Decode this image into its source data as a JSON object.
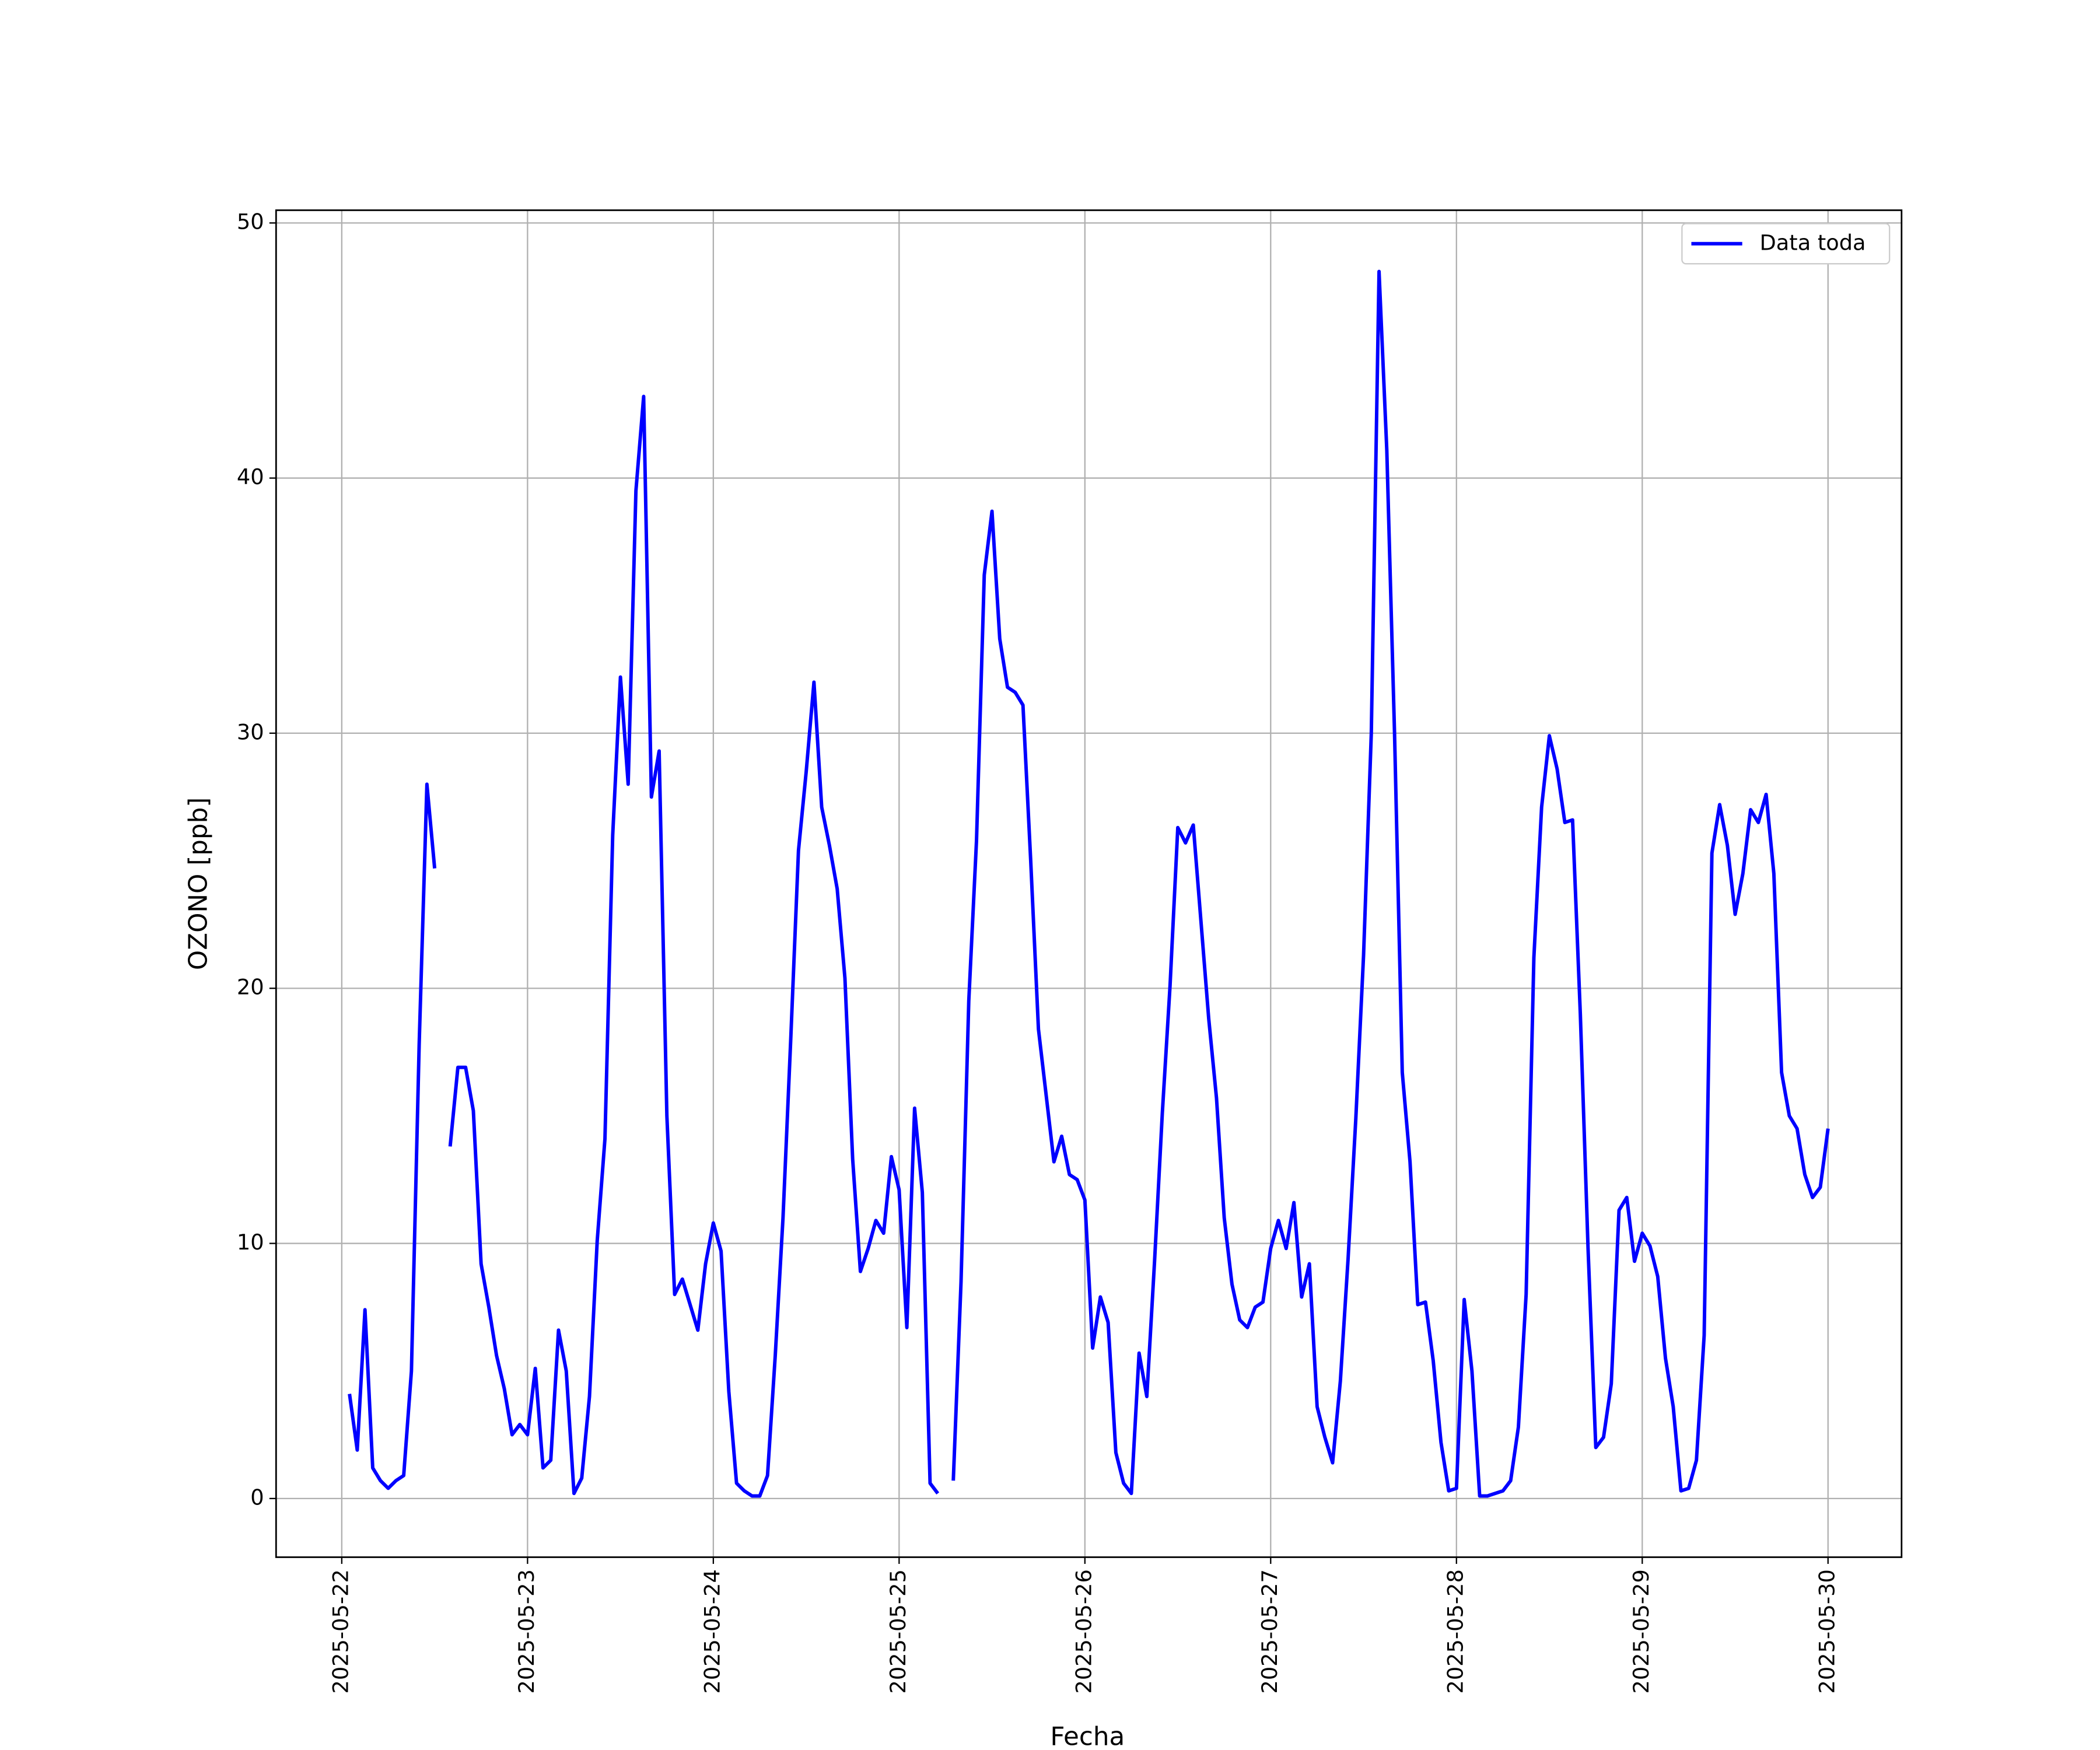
{
  "chart_data": {
    "type": "line",
    "xlabel": "Fecha",
    "ylabel": "OZONO [ppb]",
    "xlim": [
      "2025-05-21T15:31",
      "2025-05-30T09:30"
    ],
    "ylim": [
      -2.3,
      50.5
    ],
    "xticks": [
      "2025-05-22",
      "2025-05-23",
      "2025-05-24",
      "2025-05-25",
      "2025-05-26",
      "2025-05-27",
      "2025-05-28",
      "2025-05-29",
      "2025-05-30"
    ],
    "yticks": [
      0,
      10,
      20,
      30,
      40,
      50
    ],
    "grid": true,
    "legend": "upper right",
    "x": [
      "2025-05-22T01:00",
      "2025-05-22T02:00",
      "2025-05-22T03:00",
      "2025-05-22T04:00",
      "2025-05-22T05:00",
      "2025-05-22T06:00",
      "2025-05-22T07:00",
      "2025-05-22T08:00",
      "2025-05-22T09:00",
      "2025-05-22T10:00",
      "2025-05-22T11:00",
      "2025-05-22T12:00",
      "2025-05-22T13:00",
      "2025-05-22T14:00",
      "2025-05-22T15:00",
      "2025-05-22T16:00",
      "2025-05-22T17:00",
      "2025-05-22T18:00",
      "2025-05-22T19:00",
      "2025-05-22T20:00",
      "2025-05-22T21:00",
      "2025-05-22T22:00",
      "2025-05-22T23:00",
      "2025-05-23T00:00",
      "2025-05-23T01:00",
      "2025-05-23T02:00",
      "2025-05-23T03:00",
      "2025-05-23T04:00",
      "2025-05-23T05:00",
      "2025-05-23T06:00",
      "2025-05-23T07:00",
      "2025-05-23T08:00",
      "2025-05-23T09:00",
      "2025-05-23T10:00",
      "2025-05-23T11:00",
      "2025-05-23T12:00",
      "2025-05-23T13:00",
      "2025-05-23T14:00",
      "2025-05-23T15:00",
      "2025-05-23T16:00",
      "2025-05-23T17:00",
      "2025-05-23T18:00",
      "2025-05-23T19:00",
      "2025-05-23T20:00",
      "2025-05-23T21:00",
      "2025-05-23T22:00",
      "2025-05-23T23:00",
      "2025-05-24T00:00",
      "2025-05-24T01:00",
      "2025-05-24T02:00",
      "2025-05-24T03:00",
      "2025-05-24T04:00",
      "2025-05-24T05:00",
      "2025-05-24T06:00",
      "2025-05-24T07:00",
      "2025-05-24T08:00",
      "2025-05-24T09:00",
      "2025-05-24T10:00",
      "2025-05-24T11:00",
      "2025-05-24T12:00",
      "2025-05-24T13:00",
      "2025-05-24T14:00",
      "2025-05-24T15:00",
      "2025-05-24T16:00",
      "2025-05-24T17:00",
      "2025-05-24T18:00",
      "2025-05-24T19:00",
      "2025-05-24T20:00",
      "2025-05-24T21:00",
      "2025-05-24T22:00",
      "2025-05-24T23:00",
      "2025-05-25T00:00",
      "2025-05-25T01:00",
      "2025-05-25T02:00",
      "2025-05-25T03:00",
      "2025-05-25T04:00",
      "2025-05-25T05:00",
      "2025-05-25T06:00",
      "2025-05-25T07:00",
      "2025-05-25T08:00",
      "2025-05-25T09:00",
      "2025-05-25T10:00",
      "2025-05-25T11:00",
      "2025-05-25T12:00",
      "2025-05-25T13:00",
      "2025-05-25T14:00",
      "2025-05-25T15:00",
      "2025-05-25T16:00",
      "2025-05-25T17:00",
      "2025-05-25T18:00",
      "2025-05-25T19:00",
      "2025-05-25T20:00",
      "2025-05-25T21:00",
      "2025-05-25T22:00",
      "2025-05-25T23:00",
      "2025-05-26T00:00",
      "2025-05-26T01:00",
      "2025-05-26T02:00",
      "2025-05-26T03:00",
      "2025-05-26T04:00",
      "2025-05-26T05:00",
      "2025-05-26T06:00",
      "2025-05-26T07:00",
      "2025-05-26T08:00",
      "2025-05-26T09:00",
      "2025-05-26T10:00",
      "2025-05-26T11:00",
      "2025-05-26T12:00",
      "2025-05-26T13:00",
      "2025-05-26T14:00",
      "2025-05-26T15:00",
      "2025-05-26T16:00",
      "2025-05-26T17:00",
      "2025-05-26T18:00",
      "2025-05-26T19:00",
      "2025-05-26T20:00",
      "2025-05-26T21:00",
      "2025-05-26T22:00",
      "2025-05-26T23:00",
      "2025-05-27T00:00",
      "2025-05-27T01:00",
      "2025-05-27T02:00",
      "2025-05-27T03:00",
      "2025-05-27T04:00",
      "2025-05-27T05:00",
      "2025-05-27T06:00",
      "2025-05-27T07:00",
      "2025-05-27T08:00",
      "2025-05-27T09:00",
      "2025-05-27T10:00",
      "2025-05-27T11:00",
      "2025-05-27T12:00",
      "2025-05-27T13:00",
      "2025-05-27T14:00",
      "2025-05-27T15:00",
      "2025-05-27T16:00",
      "2025-05-27T17:00",
      "2025-05-27T18:00",
      "2025-05-27T19:00",
      "2025-05-27T20:00",
      "2025-05-27T21:00",
      "2025-05-27T22:00",
      "2025-05-27T23:00",
      "2025-05-28T00:00",
      "2025-05-28T01:00",
      "2025-05-28T02:00",
      "2025-05-28T03:00",
      "2025-05-28T04:00",
      "2025-05-28T05:00",
      "2025-05-28T06:00",
      "2025-05-28T07:00",
      "2025-05-28T08:00",
      "2025-05-28T09:00",
      "2025-05-28T10:00",
      "2025-05-28T11:00",
      "2025-05-28T12:00",
      "2025-05-28T13:00",
      "2025-05-28T14:00",
      "2025-05-28T15:00",
      "2025-05-28T16:00",
      "2025-05-28T17:00",
      "2025-05-28T18:00",
      "2025-05-28T19:00",
      "2025-05-28T20:00",
      "2025-05-28T21:00",
      "2025-05-28T22:00",
      "2025-05-28T23:00",
      "2025-05-29T00:00",
      "2025-05-29T01:00",
      "2025-05-29T02:00",
      "2025-05-29T03:00",
      "2025-05-29T04:00",
      "2025-05-29T05:00",
      "2025-05-29T06:00",
      "2025-05-29T07:00",
      "2025-05-29T08:00",
      "2025-05-29T09:00",
      "2025-05-29T10:00",
      "2025-05-29T11:00",
      "2025-05-29T12:00",
      "2025-05-29T13:00",
      "2025-05-29T14:00",
      "2025-05-29T15:00",
      "2025-05-29T16:00",
      "2025-05-29T17:00",
      "2025-05-29T18:00",
      "2025-05-29T19:00",
      "2025-05-29T20:00",
      "2025-05-29T21:00",
      "2025-05-29T22:00",
      "2025-05-29T23:00",
      "2025-05-30T00:00"
    ],
    "series": [
      {
        "name": "Data toda",
        "color": "#0000ff",
        "values": [
          4.1,
          1.9,
          7.4,
          1.2,
          0.7,
          0.4,
          0.7,
          0.9,
          5.0,
          17.8,
          28.0,
          24.7,
          null,
          13.8,
          16.9,
          16.9,
          15.2,
          9.2,
          7.5,
          5.6,
          4.3,
          2.5,
          2.9,
          2.5,
          5.1,
          1.2,
          1.5,
          6.6,
          5.0,
          0.2,
          0.8,
          4.0,
          10.1,
          14.1,
          26.0,
          32.2,
          28.0,
          39.5,
          43.2,
          27.5,
          29.3,
          15.0,
          8.0,
          8.6,
          7.6,
          6.6,
          9.2,
          10.8,
          9.7,
          4.2,
          0.6,
          0.3,
          0.1,
          0.1,
          0.9,
          5.6,
          11.0,
          18.0,
          25.4,
          28.5,
          32.0,
          27.1,
          25.6,
          23.9,
          20.4,
          13.3,
          8.9,
          9.8,
          10.9,
          10.4,
          13.4,
          12.1,
          6.7,
          15.3,
          12.0,
          0.6,
          0.2,
          null,
          0.7,
          8.5,
          19.5,
          25.8,
          36.2,
          38.7,
          33.7,
          31.8,
          31.6,
          31.1,
          25.0,
          18.4,
          15.8,
          13.2,
          14.2,
          12.7,
          12.5,
          11.7,
          5.9,
          7.9,
          6.9,
          1.8,
          0.6,
          0.2,
          5.7,
          4.0,
          9.3,
          15.1,
          20.1,
          26.3,
          25.7,
          26.4,
          22.6,
          18.8,
          15.7,
          11.0,
          8.4,
          7.0,
          6.7,
          7.5,
          7.7,
          9.8,
          10.9,
          9.8,
          11.6,
          7.9,
          9.2,
          3.6,
          2.4,
          1.4,
          4.6,
          9.4,
          14.9,
          21.3,
          30.0,
          48.1,
          41.1,
          30.0,
          16.7,
          13.2,
          7.6,
          7.7,
          5.4,
          2.2,
          0.3,
          0.4,
          7.8,
          5.0,
          0.1,
          0.1,
          0.2,
          0.3,
          0.7,
          2.8,
          8.0,
          21.2,
          27.1,
          29.9,
          28.6,
          26.5,
          26.6,
          19.0,
          9.8,
          2.0,
          2.4,
          4.5,
          11.3,
          11.8,
          9.3,
          10.4,
          9.9,
          8.7,
          5.5,
          3.6,
          0.3,
          0.4,
          1.5,
          6.4,
          25.3,
          27.2,
          25.6,
          22.9,
          24.5,
          27.0,
          26.5,
          27.6,
          24.5,
          16.7,
          15.0,
          14.5,
          12.7,
          11.8,
          12.2,
          14.5
        ]
      }
    ]
  }
}
